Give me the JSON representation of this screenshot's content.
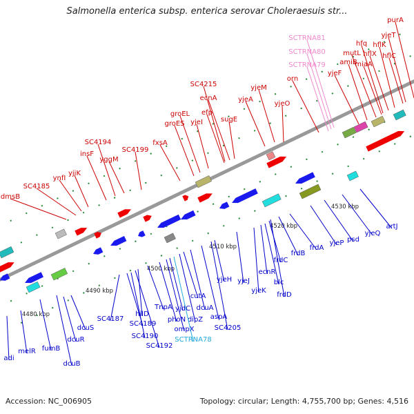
{
  "title": "Salmonella enterica subsp. enterica serovar Choleraesuis str...",
  "accession": "Accession: NC_006905",
  "summary": "Topology: circular; Length: 4,755,700 bp; Genes: 4,516",
  "colors": {
    "top_label": "#cc0000",
    "bottom_label": "#0000cc",
    "rna_pink": "#ee88cc",
    "rna_cyan": "#22aadd",
    "backbone": "#999999",
    "tick_mark": "#228833"
  },
  "scale": {
    "ticks": [
      {
        "name": "tick-4480",
        "label": "4480 kbp"
      },
      {
        "name": "tick-4490",
        "label": "4490 kbp"
      },
      {
        "name": "tick-4500",
        "label": "4500 kbp"
      },
      {
        "name": "tick-4510",
        "label": "4510 kbp"
      },
      {
        "name": "tick-4520",
        "label": "4520 kbp"
      },
      {
        "name": "tick-4530",
        "label": "4530 kbp"
      }
    ]
  },
  "genes_top": [
    {
      "name": "dmsB"
    },
    {
      "name": "SC4185"
    },
    {
      "name": "ynfI"
    },
    {
      "name": "yjiK"
    },
    {
      "name": "insF"
    },
    {
      "name": "SC4194"
    },
    {
      "name": "yggM"
    },
    {
      "name": "SC4199"
    },
    {
      "name": "fxsA"
    },
    {
      "name": "groES"
    },
    {
      "name": "groEL"
    },
    {
      "name": "yjeI"
    },
    {
      "name": "efp"
    },
    {
      "name": "SC4215"
    },
    {
      "name": "ecnA"
    },
    {
      "name": "sugE"
    },
    {
      "name": "yjeA"
    },
    {
      "name": "yjeM"
    },
    {
      "name": "yjeO"
    },
    {
      "name": "orn"
    },
    {
      "name": "yjeF"
    },
    {
      "name": "amiB"
    },
    {
      "name": "mutL"
    },
    {
      "name": "miaA"
    },
    {
      "name": "hfq"
    },
    {
      "name": "hflX"
    },
    {
      "name": "hflK"
    },
    {
      "name": "hflC"
    },
    {
      "name": "yjeT"
    },
    {
      "name": "purA"
    }
  ],
  "rna_top": [
    {
      "name": "SCTRNA81"
    },
    {
      "name": "SCTRNA80"
    },
    {
      "name": "SCTRNA79"
    }
  ],
  "genes_bottom": [
    {
      "name": "adi"
    },
    {
      "name": "melR"
    },
    {
      "name": "fumB"
    },
    {
      "name": "dcuB"
    },
    {
      "name": "dcuR"
    },
    {
      "name": "dcuS"
    },
    {
      "name": "SC4187"
    },
    {
      "name": "SC4189"
    },
    {
      "name": "SC4190"
    },
    {
      "name": "SC4192"
    },
    {
      "name": "hilD"
    },
    {
      "name": "TnpA"
    },
    {
      "name": "phoN"
    },
    {
      "name": "ompX"
    },
    {
      "name": "yjdC"
    },
    {
      "name": "dipZ"
    },
    {
      "name": "cutA"
    },
    {
      "name": "dcuA"
    },
    {
      "name": "aspA"
    },
    {
      "name": "SC4205"
    },
    {
      "name": "yjeH"
    },
    {
      "name": "yjeJ"
    },
    {
      "name": "yjeK"
    },
    {
      "name": "ecnR"
    },
    {
      "name": "blc"
    },
    {
      "name": "frdC"
    },
    {
      "name": "frdD"
    },
    {
      "name": "frdB"
    },
    {
      "name": "frdA"
    },
    {
      "name": "yjeP"
    },
    {
      "name": "psd"
    },
    {
      "name": "yjeQ"
    },
    {
      "name": "artJ"
    }
  ],
  "rna_bottom": [
    {
      "name": "SCTRNA78"
    }
  ]
}
